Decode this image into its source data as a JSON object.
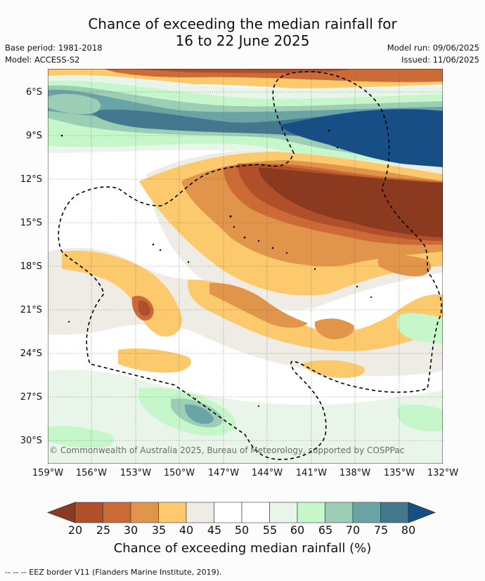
{
  "title_line1": "Chance of exceeding the median rainfall for",
  "title_line2": "16 to 22 June 2025",
  "base_period": "Base period: 1981-2018",
  "model": "Model: ACCESS-S2",
  "model_run": "Model run: 09/06/2025",
  "issued": "Issued: 11/06/2025",
  "lat_labels": [
    "6°S",
    "9°S",
    "12°S",
    "15°S",
    "18°S",
    "21°S",
    "24°S",
    "27°S",
    "30°S"
  ],
  "lon_labels": [
    "159°W",
    "156°W",
    "153°W",
    "150°W",
    "147°W",
    "144°W",
    "141°W",
    "138°W",
    "135°W",
    "132°W"
  ],
  "copyright": "© Commonwealth of Australia 2025, Bureau of Meteorology, supported by COSPPac",
  "colorbar": {
    "ticks": [
      "20",
      "25",
      "30",
      "35",
      "40",
      "45",
      "50",
      "55",
      "60",
      "65",
      "70",
      "75",
      "80"
    ],
    "colors": [
      "#8c3a1f",
      "#b24f2b",
      "#cc6b36",
      "#e0954a",
      "#fcc96d",
      "#efece6",
      "#ffffff",
      "#ffffff",
      "#e8f5e8",
      "#c6f7cb",
      "#9ccdb5",
      "#6aa4a4",
      "#44788f",
      "#164e85"
    ],
    "title": "Chance of exceeding median rainfall (%)"
  },
  "legend_text": "--  --  -- EEZ border V11 (Flanders Marine Institute, 2019)."
}
